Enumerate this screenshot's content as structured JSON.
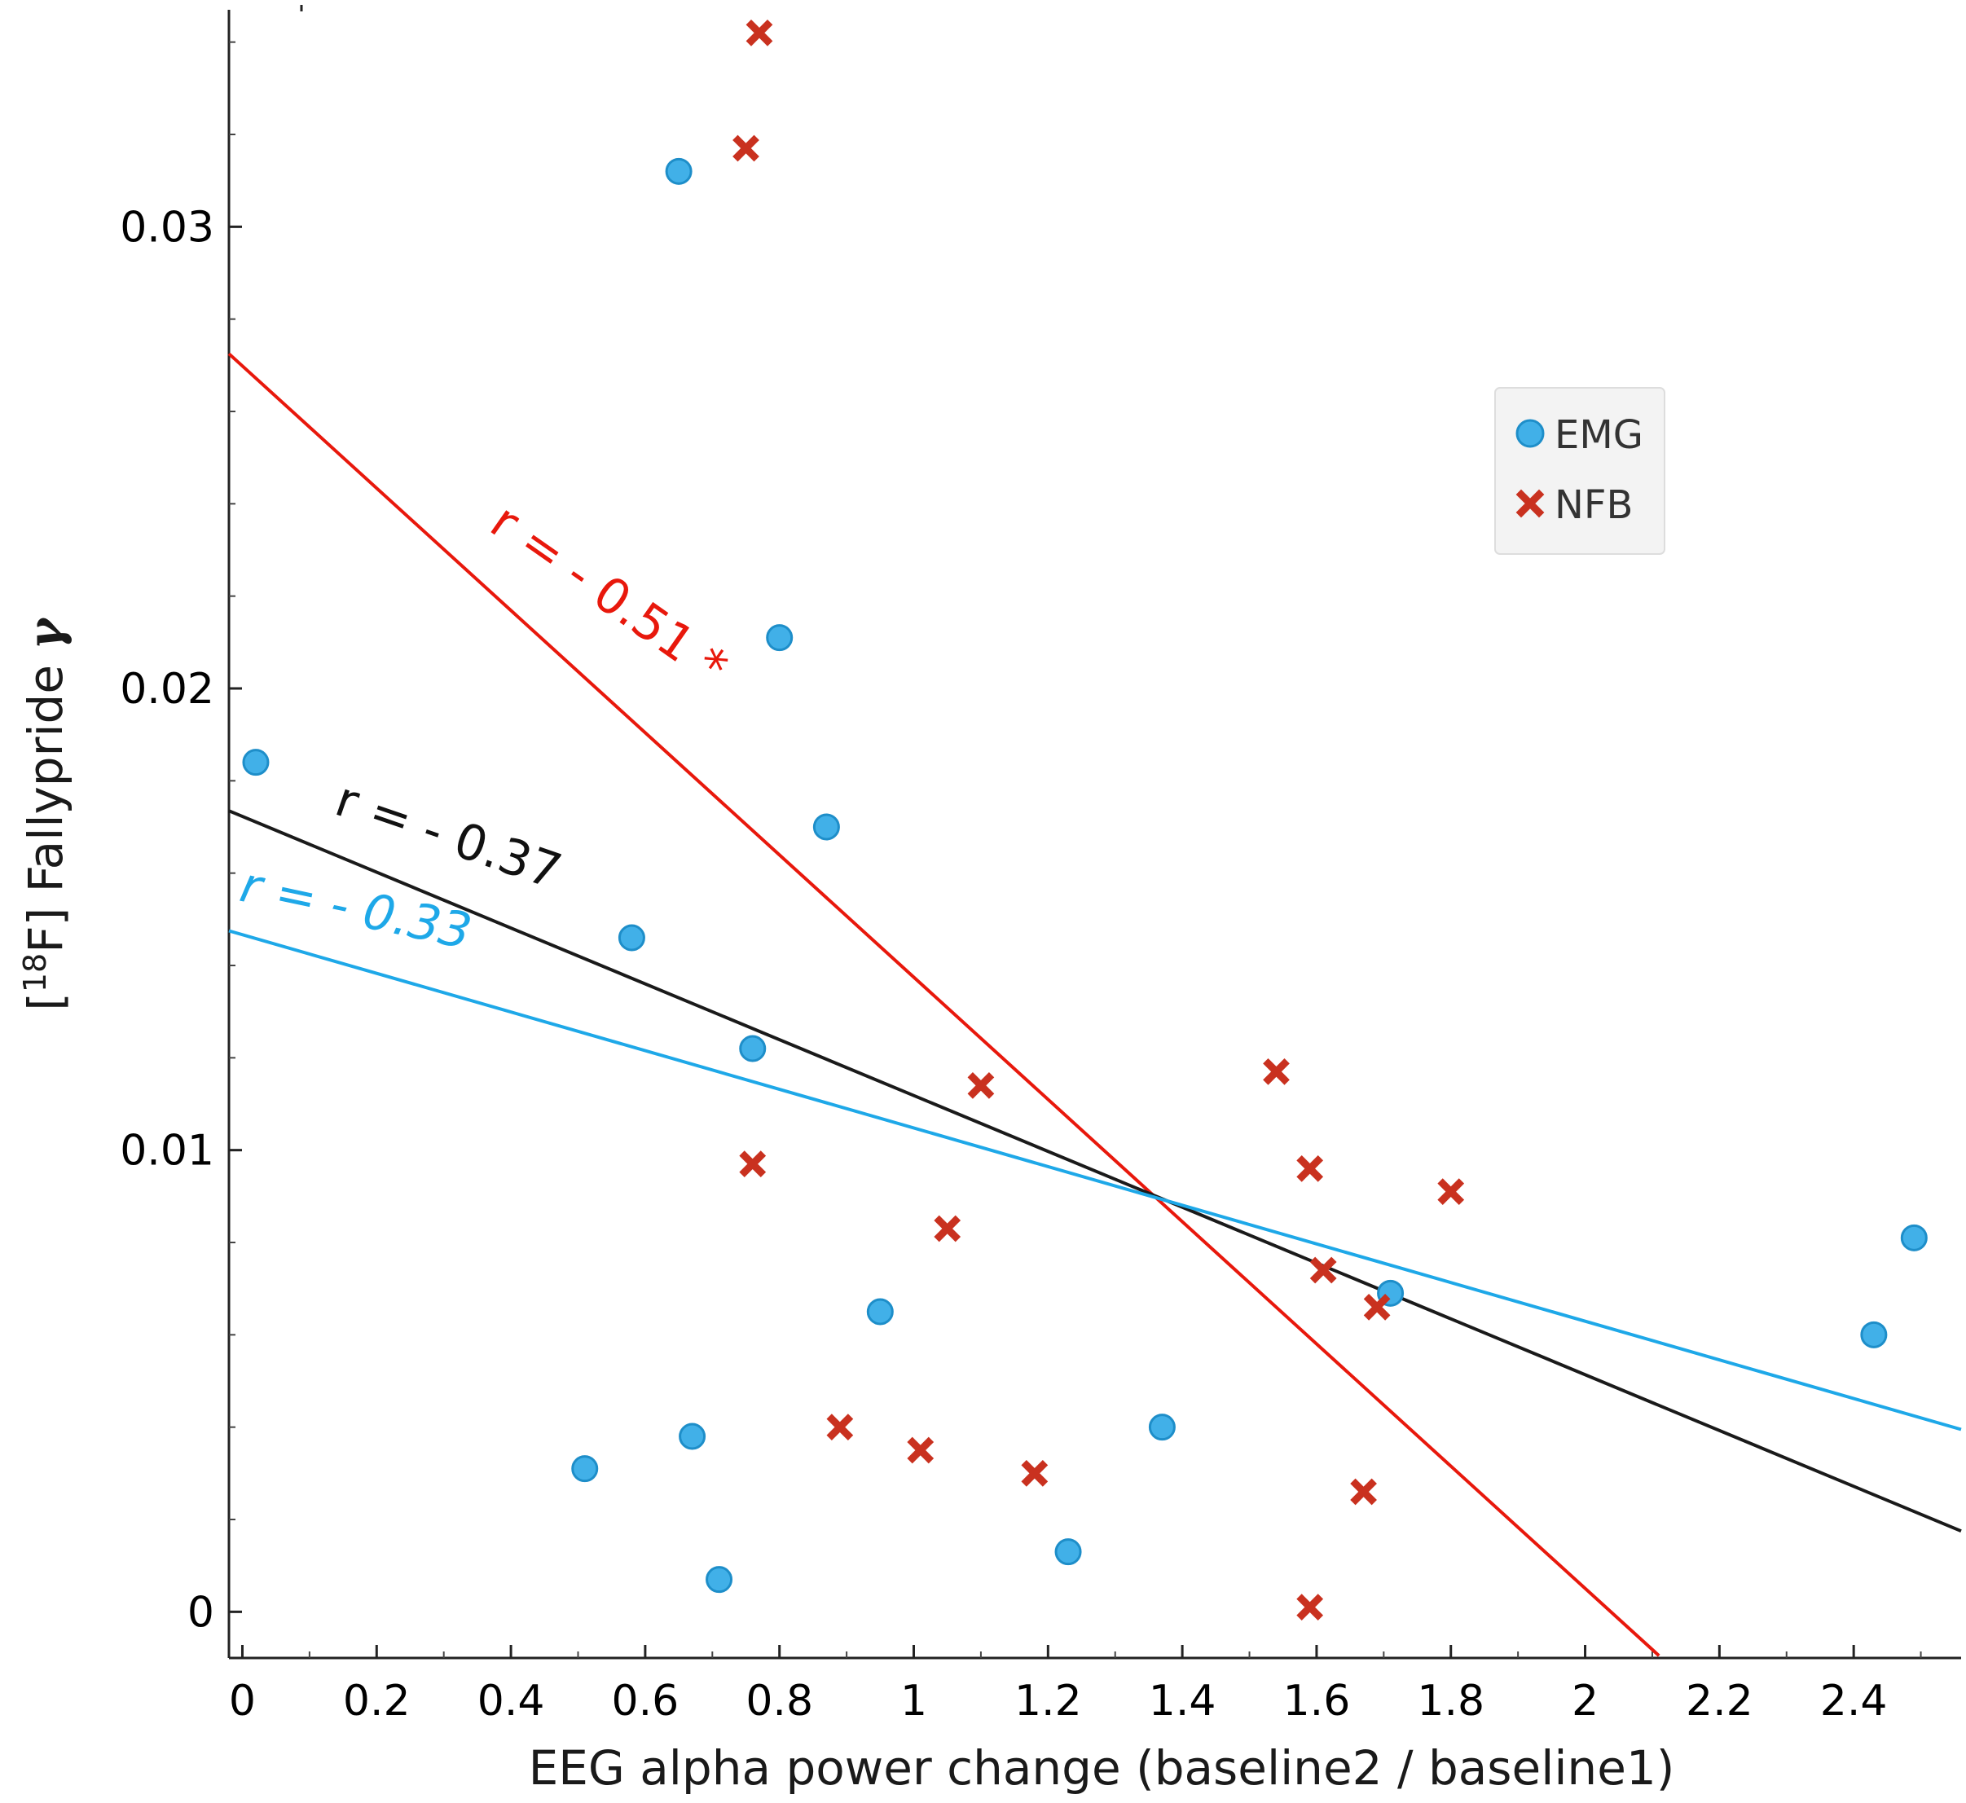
{
  "chart_data": {
    "type": "scatter",
    "xlabel": "EEG alpha power change (baseline2 / baseline1)",
    "ylabel_parts": {
      "open": "[",
      "superscript": "18",
      "main": "F] Fallypride ",
      "symbol": "γ"
    },
    "xlim": [
      -0.02,
      2.56
    ],
    "ylim": [
      -0.001,
      0.0347
    ],
    "x_ticks": [
      0,
      0.2,
      0.4,
      0.6,
      0.8,
      1,
      1.2,
      1.4,
      1.6,
      1.8,
      2,
      2.2,
      2.4
    ],
    "x_tick_labels": [
      "0",
      "0.2",
      "0.4",
      "0.6",
      "0.8",
      "1",
      "1.2",
      "1.4",
      "1.6",
      "1.8",
      "2",
      "2.2",
      "2.4"
    ],
    "y_ticks": [
      0,
      0.01,
      0.02,
      0.03
    ],
    "y_tick_labels": [
      "0",
      "0.01",
      "0.02",
      "0.03"
    ],
    "legend": {
      "position": "upper-right",
      "entries": [
        {
          "label": "EMG",
          "marker": "circle",
          "color": "#41b0e8"
        },
        {
          "label": "NFB",
          "marker": "x",
          "color": "#c9311f"
        }
      ]
    },
    "series": [
      {
        "name": "EMG",
        "marker": "circle",
        "color": "#41b0e8",
        "points": [
          {
            "x": 0.02,
            "y": 0.0184
          },
          {
            "x": 0.51,
            "y": 0.0031
          },
          {
            "x": 0.58,
            "y": 0.0146
          },
          {
            "x": 0.65,
            "y": 0.0312
          },
          {
            "x": 0.67,
            "y": 0.0038
          },
          {
            "x": 0.71,
            "y": 0.0007
          },
          {
            "x": 0.76,
            "y": 0.0122
          },
          {
            "x": 0.8,
            "y": 0.0211
          },
          {
            "x": 0.87,
            "y": 0.017
          },
          {
            "x": 0.95,
            "y": 0.0065
          },
          {
            "x": 1.23,
            "y": 0.0013
          },
          {
            "x": 1.37,
            "y": 0.004
          },
          {
            "x": 1.71,
            "y": 0.0069
          },
          {
            "x": 2.43,
            "y": 0.006
          },
          {
            "x": 2.49,
            "y": 0.0081
          }
        ]
      },
      {
        "name": "NFB",
        "marker": "x",
        "color": "#c9311f",
        "points": [
          {
            "x": 0.77,
            "y": 0.0342
          },
          {
            "x": 0.75,
            "y": 0.0317
          },
          {
            "x": 0.76,
            "y": 0.0097
          },
          {
            "x": 0.89,
            "y": 0.004
          },
          {
            "x": 1.01,
            "y": 0.0035
          },
          {
            "x": 1.05,
            "y": 0.0083
          },
          {
            "x": 1.1,
            "y": 0.0114
          },
          {
            "x": 1.18,
            "y": 0.003
          },
          {
            "x": 1.54,
            "y": 0.0117
          },
          {
            "x": 1.59,
            "y": 0.0096
          },
          {
            "x": 1.59,
            "y": 0.0001
          },
          {
            "x": 1.61,
            "y": 0.0074
          },
          {
            "x": 1.67,
            "y": 0.0026
          },
          {
            "x": 1.69,
            "y": 0.0066
          },
          {
            "x": 1.8,
            "y": 0.0091
          }
        ]
      }
    ],
    "regression_lines": [
      {
        "name": "NFB fit",
        "label": "r = - 0.51 *",
        "color": "#e8180c",
        "x": [
          -0.02,
          2.11
        ],
        "y": [
          0.02725,
          -0.00095
        ]
      },
      {
        "name": "All fit",
        "label": "r = - 0.37",
        "color": "#1a1a1a",
        "x": [
          -0.02,
          2.56
        ],
        "y": [
          0.01735,
          0.00175
        ]
      },
      {
        "name": "EMG fit",
        "label": "r = - 0.33",
        "color": "#1ea8e8",
        "x": [
          -0.02,
          2.56
        ],
        "y": [
          0.01475,
          0.00395
        ]
      }
    ]
  }
}
